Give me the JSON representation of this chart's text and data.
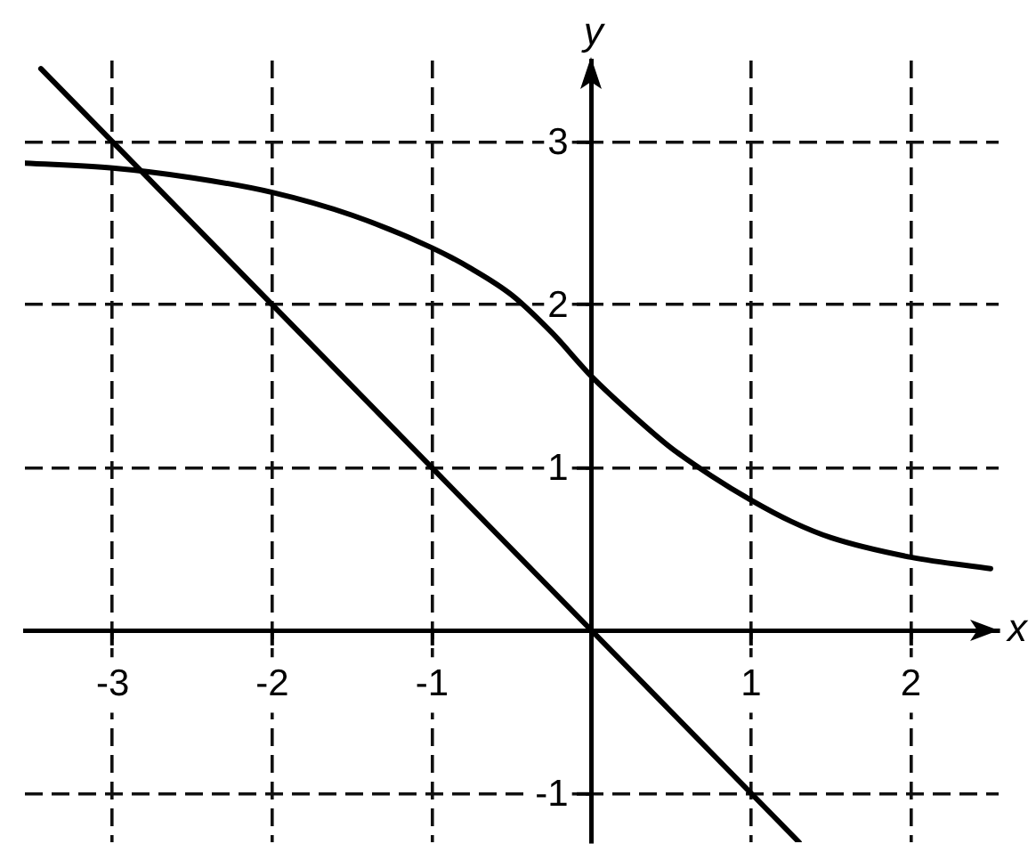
{
  "chart_data": {
    "type": "line",
    "xlabel": "x",
    "ylabel": "y",
    "series": [
      {
        "color": "#000000",
        "x": [
          -3.45,
          1.3
        ],
        "values": [
          3.45,
          -1.3
        ]
      },
      {
        "color": "#000000",
        "x": [
          -3.55,
          -3,
          -2.5,
          -2,
          -1.5,
          -1,
          -0.75,
          -0.5,
          -0.25,
          0,
          0.25,
          0.5,
          0.75,
          1,
          1.25,
          1.5,
          2,
          2.5
        ],
        "values": [
          2.87,
          2.84,
          2.78,
          2.69,
          2.55,
          2.35,
          2.22,
          2.06,
          1.83,
          1.56,
          1.33,
          1.12,
          0.95,
          0.8,
          0.67,
          0.57,
          0.45,
          0.38
        ]
      }
    ],
    "xlim": [
      -3.55,
      2.55
    ],
    "ylim": [
      -1.3,
      3.5
    ],
    "xticks": [
      -3,
      -2,
      -1,
      1,
      2
    ],
    "yticks": [
      -1,
      1,
      2,
      3
    ],
    "grid": true,
    "marker": "none",
    "line_style": "solid"
  }
}
